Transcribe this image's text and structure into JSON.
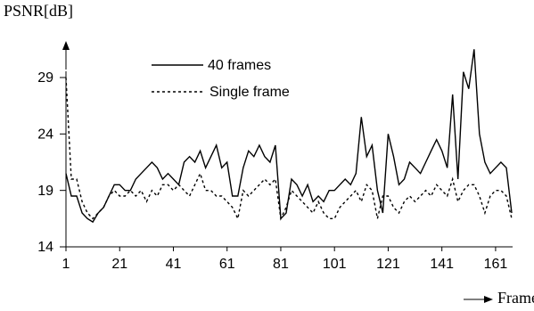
{
  "chart_data": {
    "type": "line",
    "y_label": "PSNR[dB]",
    "x_label": "Frame",
    "x": [
      1,
      3,
      5,
      7,
      9,
      11,
      13,
      15,
      17,
      19,
      21,
      23,
      25,
      27,
      29,
      31,
      33,
      35,
      37,
      39,
      41,
      43,
      45,
      47,
      49,
      51,
      53,
      55,
      57,
      59,
      61,
      63,
      65,
      67,
      69,
      71,
      73,
      75,
      77,
      79,
      81,
      83,
      85,
      87,
      89,
      91,
      93,
      95,
      97,
      99,
      101,
      103,
      105,
      107,
      109,
      111,
      113,
      115,
      117,
      119,
      121,
      123,
      125,
      127,
      129,
      131,
      133,
      135,
      137,
      139,
      141,
      143,
      145,
      147,
      149,
      151,
      153,
      155,
      157,
      159,
      161,
      163,
      165,
      167
    ],
    "series": [
      {
        "name": "40 frames",
        "color": "#000000",
        "dash": "solid",
        "values": [
          20.5,
          18.5,
          18.5,
          17,
          16.5,
          16.2,
          17,
          17.5,
          18.5,
          19.5,
          19.5,
          19,
          19,
          20,
          20.5,
          21,
          21.5,
          21,
          20,
          20.5,
          20,
          19.5,
          21.5,
          22,
          21.5,
          22.5,
          21,
          22,
          23,
          21,
          21.5,
          18.5,
          18.5,
          21,
          22.5,
          22,
          23,
          22,
          21.5,
          23,
          16.5,
          17,
          20,
          19.5,
          18.5,
          19.5,
          18,
          18.5,
          18,
          19,
          19,
          19.5,
          20,
          19.5,
          20.5,
          25.5,
          22,
          23,
          19,
          17,
          24,
          22,
          19.5,
          20,
          21.5,
          21,
          20.5,
          21.5,
          22.5,
          23.5,
          22.5,
          21,
          27.5,
          20,
          29.5,
          28,
          31.5,
          24,
          21.5,
          20.5,
          21,
          21.5,
          21,
          17
        ]
      },
      {
        "name": "Single frame",
        "color": "#000000",
        "dash": "dotted",
        "values": [
          29,
          20,
          20,
          18,
          17,
          16.5,
          17,
          17.5,
          18.5,
          19,
          18.5,
          18.5,
          19,
          18.5,
          19,
          18,
          19,
          18.5,
          19.5,
          19.5,
          19,
          19.5,
          19,
          18.5,
          19.5,
          20.5,
          19,
          19,
          18.5,
          18.5,
          18,
          17.5,
          16.5,
          19,
          18.5,
          19,
          19.5,
          20,
          19.5,
          20,
          16.5,
          17.5,
          19,
          18.5,
          18,
          17.5,
          17,
          18,
          17,
          16.5,
          16.5,
          17.5,
          18,
          18.5,
          19,
          18,
          19.5,
          19,
          16.5,
          18.5,
          18.5,
          17.5,
          17,
          18,
          18.5,
          18,
          18.5,
          19,
          18.5,
          19.5,
          19,
          18.5,
          20,
          18,
          19,
          19.5,
          19.5,
          18.5,
          17,
          18.5,
          19,
          19,
          18.5,
          16.5
        ]
      }
    ],
    "xlim": [
      1,
      168
    ],
    "xticks": [
      1,
      21,
      41,
      61,
      81,
      101,
      121,
      141,
      161
    ],
    "ylim": [
      14,
      32
    ],
    "yticks": [
      14,
      19,
      24,
      29
    ],
    "grid": false
  }
}
